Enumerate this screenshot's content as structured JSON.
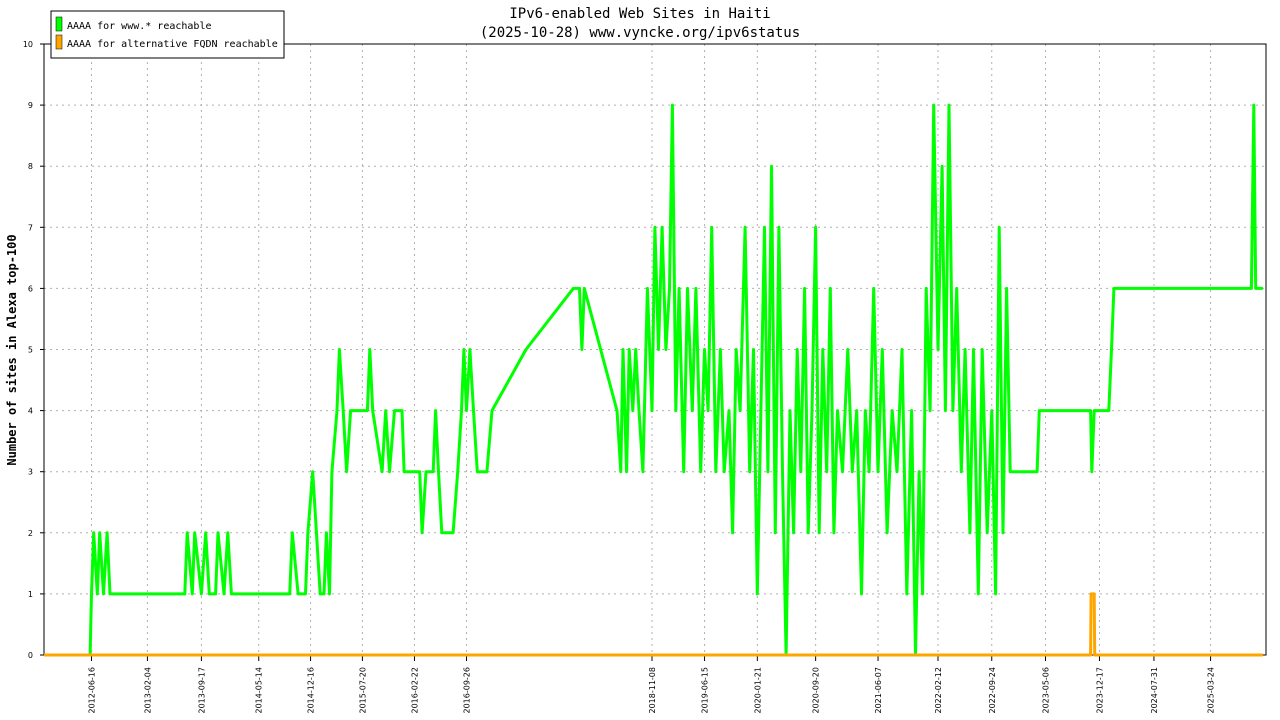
{
  "chart_data": {
    "type": "line",
    "title": "IPv6-enabled Web Sites in Haiti",
    "subtitle": "(2025-10-28) www.vyncke.org/ipv6status",
    "xlabel": "",
    "ylabel": "Number of sites in Alexa top-100",
    "ylim": [
      0,
      10
    ],
    "yticks": [
      0,
      1,
      2,
      3,
      4,
      5,
      6,
      7,
      8,
      9,
      10
    ],
    "xlim": [
      "2011-12-01",
      "2025-11-10"
    ],
    "xticks": [
      "2012-06-16",
      "2013-02-04",
      "2013-09-17",
      "2014-05-14",
      "2014-12-16",
      "2015-07-20",
      "2016-02-22",
      "2016-09-26",
      "2018-11-08",
      "2019-06-15",
      "2020-01-21",
      "2020-09-20",
      "2021-06-07",
      "2022-02-12",
      "2022-09-24",
      "2023-05-06",
      "2023-12-17",
      "2024-07-31",
      "2025-03-24"
    ],
    "grid": true,
    "legend_position": "top-left",
    "series": [
      {
        "name": "AAAA for www.* reachable",
        "color": "#00ff00",
        "points": [
          [
            "2011-12-01",
            0
          ],
          [
            "2012-06-10",
            0
          ],
          [
            "2012-06-16",
            1
          ],
          [
            "2012-06-25",
            2
          ],
          [
            "2012-07-10",
            1
          ],
          [
            "2012-07-20",
            2
          ],
          [
            "2012-08-05",
            1
          ],
          [
            "2012-08-20",
            2
          ],
          [
            "2012-09-01",
            1
          ],
          [
            "2013-07-10",
            1
          ],
          [
            "2013-07-20",
            2
          ],
          [
            "2013-08-10",
            1
          ],
          [
            "2013-08-20",
            2
          ],
          [
            "2013-09-17",
            1
          ],
          [
            "2013-10-05",
            2
          ],
          [
            "2013-10-20",
            1
          ],
          [
            "2013-11-15",
            1
          ],
          [
            "2013-11-25",
            2
          ],
          [
            "2013-12-20",
            1
          ],
          [
            "2014-01-05",
            2
          ],
          [
            "2014-01-20",
            1
          ],
          [
            "2014-09-20",
            1
          ],
          [
            "2014-10-01",
            2
          ],
          [
            "2014-10-25",
            1
          ],
          [
            "2014-11-25",
            1
          ],
          [
            "2014-12-05",
            2
          ],
          [
            "2014-12-25",
            3
          ],
          [
            "2015-01-25",
            1
          ],
          [
            "2015-02-10",
            1
          ],
          [
            "2015-02-20",
            2
          ],
          [
            "2015-03-05",
            1
          ],
          [
            "2015-03-15",
            3
          ],
          [
            "2015-04-05",
            4
          ],
          [
            "2015-04-15",
            5
          ],
          [
            "2015-05-01",
            4
          ],
          [
            "2015-05-15",
            3
          ],
          [
            "2015-06-01",
            4
          ],
          [
            "2015-08-10",
            4
          ],
          [
            "2015-08-20",
            5
          ],
          [
            "2015-09-01",
            4
          ],
          [
            "2015-10-10",
            3
          ],
          [
            "2015-10-25",
            4
          ],
          [
            "2015-11-10",
            3
          ],
          [
            "2015-12-01",
            4
          ],
          [
            "2016-01-01",
            4
          ],
          [
            "2016-01-10",
            3
          ],
          [
            "2016-03-15",
            3
          ],
          [
            "2016-03-25",
            2
          ],
          [
            "2016-04-10",
            3
          ],
          [
            "2016-05-10",
            3
          ],
          [
            "2016-05-20",
            4
          ],
          [
            "2016-06-01",
            3
          ],
          [
            "2016-06-15",
            2
          ],
          [
            "2016-08-01",
            2
          ],
          [
            "2016-08-20",
            3
          ],
          [
            "2016-09-05",
            4
          ],
          [
            "2016-09-15",
            5
          ],
          [
            "2016-09-26",
            4
          ],
          [
            "2016-10-10",
            5
          ],
          [
            "2016-10-25",
            4
          ],
          [
            "2016-11-10",
            3
          ],
          [
            "2016-12-20",
            3
          ],
          [
            "2017-01-10",
            4
          ],
          [
            "2017-06-01",
            5
          ],
          [
            "2017-12-15",
            6
          ],
          [
            "2018-01-10",
            6
          ],
          [
            "2018-01-20",
            5
          ],
          [
            "2018-01-30",
            6
          ],
          [
            "2018-06-15",
            4
          ],
          [
            "2018-07-01",
            3
          ],
          [
            "2018-07-10",
            5
          ],
          [
            "2018-07-25",
            3
          ],
          [
            "2018-08-05",
            5
          ],
          [
            "2018-08-20",
            4
          ],
          [
            "2018-09-01",
            5
          ],
          [
            "2018-09-15",
            4
          ],
          [
            "2018-10-01",
            3
          ],
          [
            "2018-10-20",
            6
          ],
          [
            "2018-11-08",
            4
          ],
          [
            "2018-11-20",
            7
          ],
          [
            "2018-12-05",
            5
          ],
          [
            "2018-12-20",
            7
          ],
          [
            "2019-01-05",
            5
          ],
          [
            "2019-01-20",
            6
          ],
          [
            "2019-02-01",
            9
          ],
          [
            "2019-02-15",
            4
          ],
          [
            "2019-03-01",
            6
          ],
          [
            "2019-03-20",
            3
          ],
          [
            "2019-04-05",
            6
          ],
          [
            "2019-04-25",
            4
          ],
          [
            "2019-05-10",
            6
          ],
          [
            "2019-05-30",
            3
          ],
          [
            "2019-06-15",
            5
          ],
          [
            "2019-06-30",
            4
          ],
          [
            "2019-07-15",
            7
          ],
          [
            "2019-08-01",
            3
          ],
          [
            "2019-08-20",
            5
          ],
          [
            "2019-09-05",
            3
          ],
          [
            "2019-09-25",
            4
          ],
          [
            "2019-10-10",
            2
          ],
          [
            "2019-10-25",
            5
          ],
          [
            "2019-11-10",
            4
          ],
          [
            "2019-12-01",
            7
          ],
          [
            "2019-12-20",
            3
          ],
          [
            "2020-01-05",
            5
          ],
          [
            "2020-01-21",
            1
          ],
          [
            "2020-02-05",
            4
          ],
          [
            "2020-02-20",
            7
          ],
          [
            "2020-03-05",
            3
          ],
          [
            "2020-03-20",
            8
          ],
          [
            "2020-04-05",
            2
          ],
          [
            "2020-04-20",
            7
          ],
          [
            "2020-05-05",
            3
          ],
          [
            "2020-05-20",
            0
          ],
          [
            "2020-06-05",
            4
          ],
          [
            "2020-06-20",
            2
          ],
          [
            "2020-07-05",
            5
          ],
          [
            "2020-07-20",
            3
          ],
          [
            "2020-08-05",
            6
          ],
          [
            "2020-08-20",
            2
          ],
          [
            "2020-09-05",
            4
          ],
          [
            "2020-09-20",
            7
          ],
          [
            "2020-10-05",
            2
          ],
          [
            "2020-10-20",
            5
          ],
          [
            "2020-11-05",
            3
          ],
          [
            "2020-11-20",
            6
          ],
          [
            "2020-12-05",
            2
          ],
          [
            "2020-12-20",
            4
          ],
          [
            "2021-01-10",
            3
          ],
          [
            "2021-02-01",
            5
          ],
          [
            "2021-02-20",
            3
          ],
          [
            "2021-03-10",
            4
          ],
          [
            "2021-03-30",
            1
          ],
          [
            "2021-04-15",
            4
          ],
          [
            "2021-05-01",
            3
          ],
          [
            "2021-05-20",
            6
          ],
          [
            "2021-06-07",
            3
          ],
          [
            "2021-06-25",
            5
          ],
          [
            "2021-07-15",
            2
          ],
          [
            "2021-08-05",
            4
          ],
          [
            "2021-08-25",
            3
          ],
          [
            "2021-09-15",
            5
          ],
          [
            "2021-10-05",
            1
          ],
          [
            "2021-10-25",
            4
          ],
          [
            "2021-11-10",
            0
          ],
          [
            "2021-11-25",
            3
          ],
          [
            "2021-12-10",
            1
          ],
          [
            "2021-12-25",
            6
          ],
          [
            "2022-01-10",
            4
          ],
          [
            "2022-01-25",
            9
          ],
          [
            "2022-02-12",
            5
          ],
          [
            "2022-03-01",
            8
          ],
          [
            "2022-03-15",
            4
          ],
          [
            "2022-03-30",
            9
          ],
          [
            "2022-04-15",
            4
          ],
          [
            "2022-05-01",
            6
          ],
          [
            "2022-05-20",
            3
          ],
          [
            "2022-06-05",
            5
          ],
          [
            "2022-06-25",
            2
          ],
          [
            "2022-07-10",
            5
          ],
          [
            "2022-07-30",
            1
          ],
          [
            "2022-08-15",
            5
          ],
          [
            "2022-09-05",
            2
          ],
          [
            "2022-09-24",
            4
          ],
          [
            "2022-10-10",
            1
          ],
          [
            "2022-10-25",
            7
          ],
          [
            "2022-11-10",
            2
          ],
          [
            "2022-11-25",
            6
          ],
          [
            "2022-12-10",
            3
          ],
          [
            "2022-12-20",
            3
          ],
          [
            "2023-04-01",
            3
          ],
          [
            "2023-04-10",
            4
          ],
          [
            "2023-11-10",
            4
          ],
          [
            "2023-11-15",
            3
          ],
          [
            "2023-11-25",
            4
          ],
          [
            "2023-12-17",
            4
          ],
          [
            "2024-01-25",
            4
          ],
          [
            "2024-02-05",
            5
          ],
          [
            "2024-02-15",
            6
          ],
          [
            "2025-09-10",
            6
          ],
          [
            "2025-09-20",
            9
          ],
          [
            "2025-09-28",
            6
          ],
          [
            "2025-10-28",
            6
          ]
        ]
      },
      {
        "name": "AAAA for alternative FQDN reachable",
        "color": "#ffa500",
        "points": [
          [
            "2011-12-01",
            0
          ],
          [
            "2023-11-10",
            0
          ],
          [
            "2023-11-12",
            1
          ],
          [
            "2023-11-25",
            1
          ],
          [
            "2023-11-27",
            0
          ],
          [
            "2025-10-28",
            0
          ]
        ]
      }
    ]
  }
}
